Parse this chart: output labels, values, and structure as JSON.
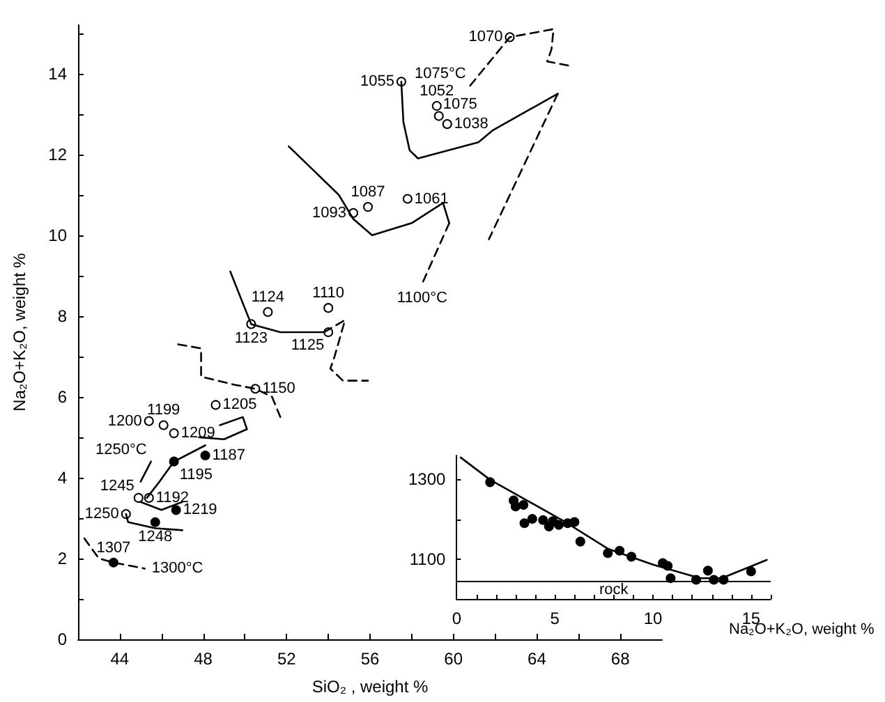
{
  "chart_data": [
    {
      "type": "scatter",
      "xlabel": "SiO₂ , weight %",
      "ylabel": "Na₂O+K₂O, weight %",
      "xlim": [
        42,
        70
      ],
      "ylim": [
        0,
        15.2
      ],
      "xticks": [
        44,
        {
          "value": 46,
          "label": null
        },
        48,
        {
          "value": 50,
          "label": null
        },
        52,
        {
          "value": 54,
          "label": null
        },
        56,
        {
          "value": 58,
          "label": null
        },
        60,
        {
          "value": 62,
          "label": null
        },
        64,
        {
          "value": 66,
          "label": null
        },
        68
      ],
      "yticks": [
        0,
        {
          "value": 1,
          "label": null
        },
        2,
        {
          "value": 3,
          "label": null
        },
        4,
        {
          "value": 5,
          "label": null
        },
        6,
        {
          "value": 7,
          "label": null
        },
        8,
        {
          "value": 9,
          "label": null
        },
        10,
        {
          "value": 11,
          "label": null
        },
        12,
        {
          "value": 13,
          "label": null
        },
        14,
        {
          "value": 15,
          "label": null
        }
      ],
      "grid": false,
      "annotations": [
        {
          "text": "1070",
          "x": 62.7,
          "y": 14.9
        },
        {
          "text": "1052",
          "x": 59.2,
          "y": 13.2
        },
        {
          "text": "1075",
          "x": 59.3,
          "y": 12.95
        },
        {
          "text": "1038",
          "x": 59.7,
          "y": 12.75
        },
        {
          "text": "1055",
          "x": 57.5,
          "y": 13.8
        },
        {
          "text": "1087",
          "x": 55.9,
          "y": 10.7
        },
        {
          "text": "1093",
          "x": 55.2,
          "y": 10.55
        },
        {
          "text": "1061",
          "x": 57.8,
          "y": 10.9
        },
        {
          "text": "1110",
          "x": 54.0,
          "y": 8.2
        },
        {
          "text": "1124",
          "x": 51.1,
          "y": 8.1
        },
        {
          "text": "1123",
          "x": 50.3,
          "y": 7.8
        },
        {
          "text": "1125",
          "x": 54.0,
          "y": 7.6
        },
        {
          "text": "1150",
          "x": 50.5,
          "y": 6.2
        },
        {
          "text": "1205",
          "x": 48.6,
          "y": 5.8
        },
        {
          "text": "1200",
          "x": 45.4,
          "y": 5.4
        },
        {
          "text": "1199",
          "x": 46.1,
          "y": 5.3
        },
        {
          "text": "1209",
          "x": 46.6,
          "y": 5.1
        },
        {
          "text": "1192",
          "x": 45.4,
          "y": 3.5
        },
        {
          "text": "1245",
          "x": 44.9,
          "y": 3.5
        },
        {
          "text": "1250",
          "x": 44.3,
          "y": 3.1
        },
        {
          "text": "1187",
          "x": 48.1,
          "y": 4.55
        },
        {
          "text": "1195",
          "x": 46.6,
          "y": 4.4
        },
        {
          "text": "1219",
          "x": 46.7,
          "y": 3.2
        },
        {
          "text": "1248",
          "x": 45.7,
          "y": 2.9
        },
        {
          "text": "1307",
          "x": 43.7,
          "y": 1.9
        },
        {
          "text": "1075°C",
          "x": 60.8,
          "y": 13.7
        },
        {
          "text": "1100°C",
          "x": 58.5,
          "y": 8.8
        },
        {
          "text": "1250°C",
          "x": 45.5,
          "y": 4.4
        },
        {
          "text": "1300°C",
          "x": 45.2,
          "y": 1.75
        }
      ],
      "series": [
        {
          "marker": "circle",
          "color": "#ffffff",
          "x": [
            62.7,
            59.2,
            59.3,
            59.7,
            57.5,
            55.9,
            55.2,
            57.8,
            54.0,
            51.1,
            50.3,
            54.0,
            50.5,
            48.6,
            45.4,
            46.1,
            46.6,
            45.4,
            44.9,
            44.3
          ],
          "values": [
            14.9,
            13.2,
            12.95,
            12.75,
            13.8,
            10.7,
            10.55,
            10.9,
            8.2,
            8.1,
            7.8,
            7.6,
            6.2,
            5.8,
            5.4,
            5.3,
            5.1,
            3.5,
            3.5,
            3.1
          ]
        },
        {
          "marker": "circle",
          "color": "#000000",
          "x": [
            48.1,
            46.6,
            46.7,
            45.7,
            43.7
          ],
          "values": [
            4.55,
            4.4,
            3.2,
            2.9,
            1.9
          ]
        },
        {
          "type": "line",
          "marker": "none",
          "line_style": "solid",
          "color": "#000000",
          "x": [
            57.5,
            57.6,
            57.9,
            58.3,
            61.2,
            61.9,
            65.0
          ],
          "values": [
            13.8,
            12.8,
            12.1,
            11.9,
            12.3,
            12.6,
            13.5
          ]
        },
        {
          "type": "line",
          "marker": "none",
          "line_style": "dashed",
          "color": "#000000",
          "x": [
            65.0,
            61.7
          ],
          "values": [
            13.5,
            9.9
          ]
        },
        {
          "type": "line",
          "marker": "none",
          "line_style": "dashed",
          "color": "#000000",
          "x": [
            60.8,
            62.7,
            64.8,
            64.7,
            64.5,
            65.5
          ],
          "values": [
            13.7,
            14.9,
            15.1,
            14.6,
            14.3,
            14.2
          ]
        },
        {
          "type": "line",
          "marker": "none",
          "line_style": "solid",
          "color": "#000000",
          "x": [
            52.1,
            54.5,
            55.2,
            56.1,
            58.0,
            59.5,
            59.8
          ],
          "values": [
            12.2,
            11.0,
            10.4,
            10.0,
            10.3,
            10.8,
            10.3
          ]
        },
        {
          "type": "line",
          "marker": "none",
          "line_style": "dashed",
          "color": "#000000",
          "x": [
            59.8,
            58.5
          ],
          "values": [
            10.3,
            8.8
          ]
        },
        {
          "type": "line",
          "marker": "none",
          "line_style": "solid",
          "color": "#000000",
          "x": [
            49.3,
            50.3,
            51.7,
            53.8
          ],
          "values": [
            9.1,
            7.8,
            7.6,
            7.6
          ]
        },
        {
          "type": "line",
          "marker": "none",
          "line_style": "dashed",
          "color": "#000000",
          "x": [
            53.8,
            54.8,
            54.3,
            54.1,
            54.7,
            55.9
          ],
          "values": [
            7.6,
            7.9,
            7.0,
            6.7,
            6.4,
            6.4
          ]
        },
        {
          "type": "line",
          "marker": "none",
          "line_style": "dashed",
          "color": "#000000",
          "x": [
            46.8,
            47.9,
            47.9,
            49.5,
            50.5,
            51.3,
            51.7
          ],
          "values": [
            7.3,
            7.2,
            6.5,
            6.3,
            6.2,
            6.0,
            5.5
          ]
        },
        {
          "type": "line",
          "marker": "none",
          "line_style": "solid",
          "color": "#000000",
          "x": [
            47.8,
            49.0,
            50.1,
            49.9,
            48.8
          ],
          "values": [
            5.0,
            4.95,
            5.2,
            5.5,
            5.3
          ]
        },
        {
          "type": "line",
          "marker": "none",
          "line_style": "solid",
          "color": "#000000",
          "x": [
            48.1,
            46.6,
            45.9,
            45.3
          ],
          "values": [
            4.8,
            4.4,
            3.9,
            3.5
          ]
        },
        {
          "type": "line",
          "marker": "none",
          "line_style": "solid",
          "color": "#000000",
          "x": [
            45.0,
            46.0,
            47.0
          ],
          "values": [
            3.4,
            3.2,
            3.4
          ]
        },
        {
          "type": "line",
          "marker": "none",
          "line_style": "solid",
          "color": "#000000",
          "x": [
            45.5,
            45.0
          ],
          "values": [
            4.4,
            3.9
          ]
        },
        {
          "type": "line",
          "marker": "none",
          "line_style": "solid",
          "color": "#000000",
          "x": [
            44.3,
            44.4,
            45.7,
            47.0
          ],
          "values": [
            3.1,
            2.9,
            2.75,
            2.7
          ]
        },
        {
          "type": "line",
          "marker": "none",
          "line_style": "dashed",
          "color": "#000000",
          "x": [
            42.3,
            43.0,
            43.7,
            45.2
          ],
          "values": [
            2.5,
            2.0,
            1.9,
            1.75
          ]
        }
      ]
    },
    {
      "type": "scatter",
      "xlabel": "Na₂O+K₂O, weight %",
      "xlim": [
        0,
        16
      ],
      "ylim": [
        1000,
        1360
      ],
      "xticks": [
        0,
        {
          "value": 1,
          "label": null
        },
        {
          "value": 2,
          "label": null
        },
        {
          "value": 3,
          "label": null
        },
        {
          "value": 4,
          "label": null
        },
        5,
        {
          "value": 6,
          "label": null
        },
        {
          "value": 7,
          "label": null
        },
        {
          "value": 8,
          "label": null
        },
        {
          "value": 9,
          "label": null
        },
        10,
        {
          "value": 11,
          "label": null
        },
        {
          "value": 12,
          "label": null
        },
        {
          "value": 13,
          "label": null
        },
        {
          "value": 14,
          "label": null
        },
        15,
        {
          "value": 16,
          "label": null
        }
      ],
      "yticks": [
        1100,
        {
          "value": 1200,
          "label": null
        },
        1300
      ],
      "grid": false,
      "ref_lines": [
        {
          "axis": "y",
          "value": 1045,
          "label": "rock",
          "color": "#000000"
        }
      ],
      "series": [
        {
          "marker": "circle",
          "color": "#000000",
          "x": [
            1.7,
            2.9,
            3.0,
            3.4,
            3.45,
            3.85,
            4.4,
            4.7,
            4.9,
            5.2,
            5.65,
            6.0,
            6.3,
            7.7,
            8.3,
            8.9,
            10.5,
            10.75,
            10.9,
            12.2,
            12.8,
            13.1,
            13.6,
            15.0
          ],
          "values": [
            1293,
            1247,
            1232,
            1236,
            1190,
            1201,
            1198,
            1182,
            1195,
            1186,
            1190,
            1193,
            1144,
            1115,
            1121,
            1106,
            1090,
            1083,
            1052,
            1048,
            1071,
            1048,
            1048,
            1069
          ]
        },
        {
          "type": "line",
          "marker": "none",
          "line_style": "solid",
          "color": "#000000",
          "x": [
            0.2,
            1.7,
            5.4,
            7.7,
            10.0,
            12.4,
            13.5,
            15.8
          ],
          "values": [
            1355,
            1299,
            1197,
            1126,
            1086,
            1052,
            1052,
            1098
          ]
        }
      ]
    }
  ]
}
